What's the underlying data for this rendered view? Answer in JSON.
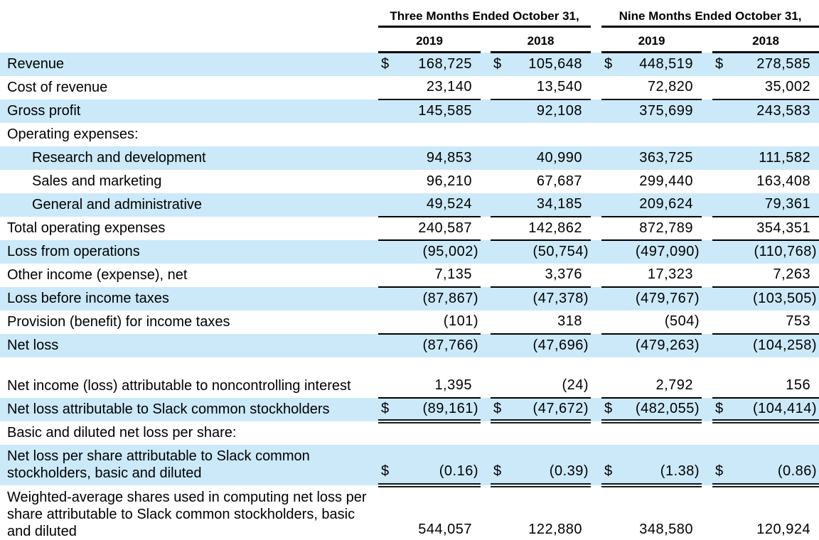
{
  "colors": {
    "row_shade": "#cce9f9",
    "rule": "#000000",
    "text": "#000000"
  },
  "header": {
    "groups": [
      {
        "title": "Three Months Ended October 31,",
        "years": [
          "2019",
          "2018"
        ]
      },
      {
        "title": "Nine Months Ended October 31,",
        "years": [
          "2019",
          "2018"
        ]
      }
    ]
  },
  "rows": [
    {
      "label": "Revenue",
      "indent": false,
      "shaded": true,
      "dollar": "$",
      "values": [
        "168,725",
        "105,648",
        "448,519",
        "278,585"
      ],
      "rule": "none",
      "lines": 1
    },
    {
      "label": "Cost of revenue",
      "indent": false,
      "shaded": false,
      "dollar": "",
      "values": [
        "23,140",
        "13,540",
        "72,820",
        "35,002"
      ],
      "rule": "single",
      "lines": 1
    },
    {
      "label": "Gross profit",
      "indent": false,
      "shaded": true,
      "dollar": "",
      "values": [
        "145,585",
        "92,108",
        "375,699",
        "243,583"
      ],
      "rule": "none",
      "lines": 1
    },
    {
      "label": "Operating expenses:",
      "indent": false,
      "shaded": false,
      "dollar": "",
      "values": [
        "",
        "",
        "",
        ""
      ],
      "rule": "none",
      "lines": 1
    },
    {
      "label": "Research and development",
      "indent": true,
      "shaded": true,
      "dollar": "",
      "values": [
        "94,853",
        "40,990",
        "363,725",
        "111,582"
      ],
      "rule": "none",
      "lines": 1
    },
    {
      "label": "Sales and marketing",
      "indent": true,
      "shaded": false,
      "dollar": "",
      "values": [
        "96,210",
        "67,687",
        "299,440",
        "163,408"
      ],
      "rule": "none",
      "lines": 1
    },
    {
      "label": "General and administrative",
      "indent": true,
      "shaded": true,
      "dollar": "",
      "values": [
        "49,524",
        "34,185",
        "209,624",
        "79,361"
      ],
      "rule": "single",
      "lines": 1
    },
    {
      "label": "Total operating expenses",
      "indent": false,
      "shaded": false,
      "dollar": "",
      "values": [
        "240,587",
        "142,862",
        "872,789",
        "354,351"
      ],
      "rule": "single",
      "lines": 1
    },
    {
      "label": "Loss from operations",
      "indent": false,
      "shaded": true,
      "dollar": "",
      "values": [
        "(95,002)",
        "(50,754)",
        "(497,090)",
        "(110,768)"
      ],
      "rule": "none",
      "lines": 1
    },
    {
      "label": "Other income (expense), net",
      "indent": false,
      "shaded": false,
      "dollar": "",
      "values": [
        "7,135",
        "3,376",
        "17,323",
        "7,263"
      ],
      "rule": "single",
      "lines": 1
    },
    {
      "label": "Loss before income taxes",
      "indent": false,
      "shaded": true,
      "dollar": "",
      "values": [
        "(87,867)",
        "(47,378)",
        "(479,767)",
        "(103,505)"
      ],
      "rule": "none",
      "lines": 1
    },
    {
      "label": "Provision (benefit) for income taxes",
      "indent": false,
      "shaded": false,
      "dollar": "",
      "values": [
        "(101)",
        "318",
        "(504)",
        "753"
      ],
      "rule": "single",
      "lines": 1
    },
    {
      "label": "Net loss",
      "indent": false,
      "shaded": true,
      "dollar": "",
      "values": [
        "(87,766)",
        "(47,696)",
        "(479,263)",
        "(104,258)"
      ],
      "rule": "none",
      "lines": 1
    },
    {
      "label": "Net income (loss) attributable to noncontrolling interest",
      "indent": false,
      "shaded": false,
      "dollar": "",
      "values": [
        "1,395",
        "(24)",
        "2,792",
        "156"
      ],
      "rule": "single",
      "lines": 2
    },
    {
      "label": "Net loss attributable to Slack common stockholders",
      "indent": false,
      "shaded": true,
      "dollar": "$",
      "values": [
        "(89,161)",
        "(47,672)",
        "(482,055)",
        "(104,414)"
      ],
      "rule": "double",
      "lines": 1
    },
    {
      "label": "Basic and diluted net loss per share:",
      "indent": false,
      "shaded": false,
      "dollar": "",
      "values": [
        "",
        "",
        "",
        ""
      ],
      "rule": "none",
      "lines": 1
    },
    {
      "label": "Net loss per share attributable to Slack common stockholders, basic and diluted",
      "indent": false,
      "shaded": true,
      "dollar": "$",
      "values": [
        "(0.16)",
        "(0.39)",
        "(1.38)",
        "(0.86)"
      ],
      "rule": "double",
      "lines": 2
    },
    {
      "label": "Weighted-average shares used in computing net loss per share attributable to Slack common stockholders, basic and diluted",
      "indent": false,
      "shaded": false,
      "dollar": "",
      "values": [
        "544,057",
        "122,880",
        "348,580",
        "120,924"
      ],
      "rule": "double",
      "lines": 3
    }
  ]
}
